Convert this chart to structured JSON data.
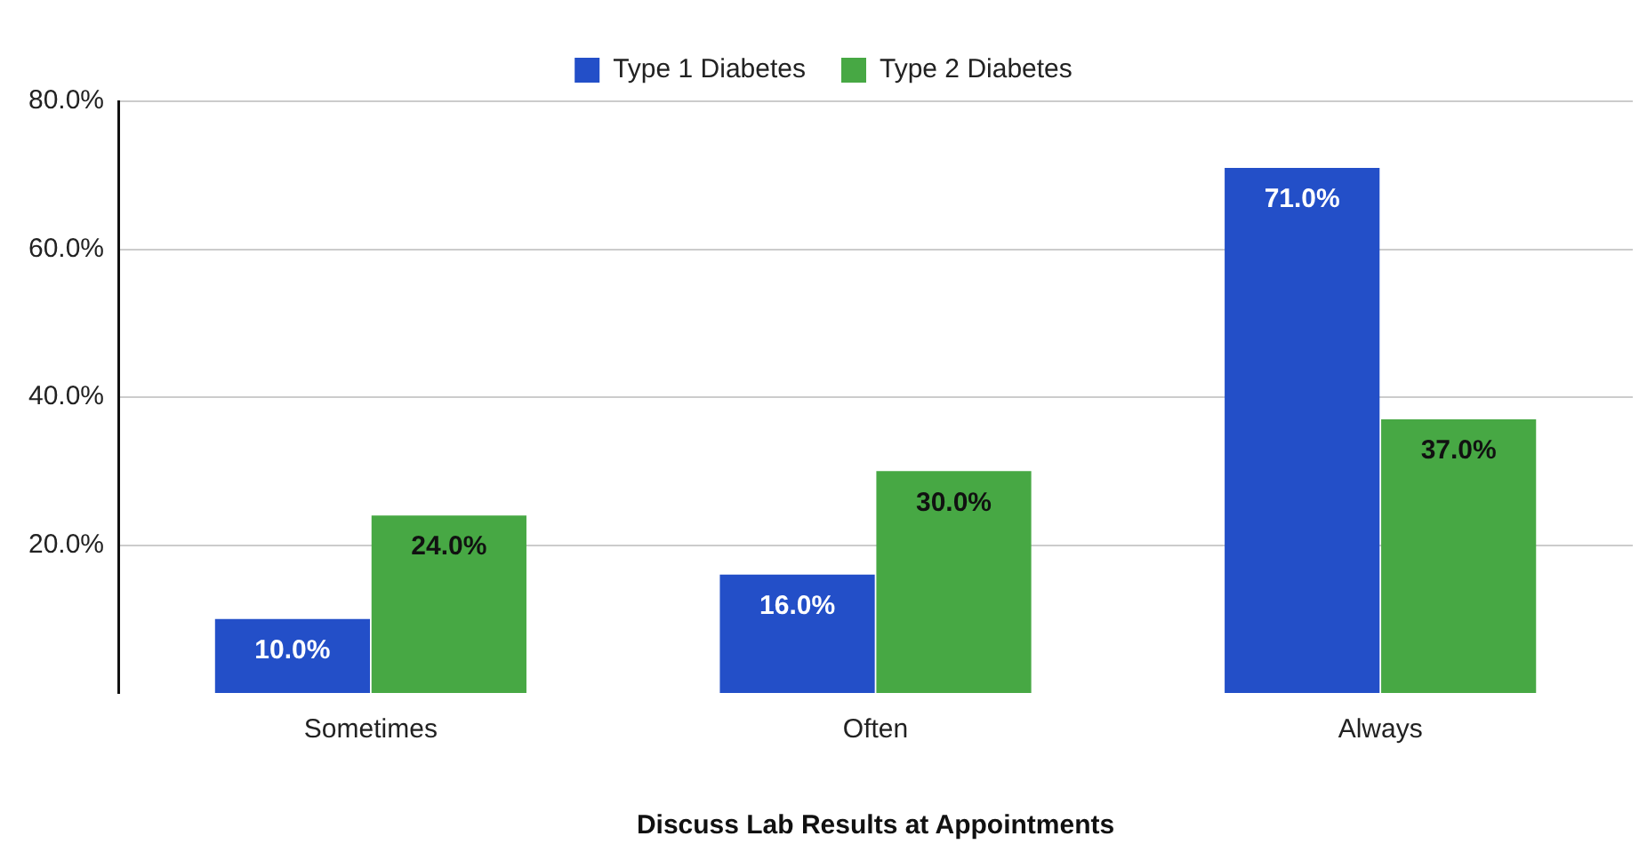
{
  "chart_data": {
    "type": "bar",
    "xlabel": "Discuss Lab Results at Appointments",
    "categories": [
      "Sometimes",
      "Often",
      "Always"
    ],
    "series": [
      {
        "name": "Type 1 Diabetes",
        "color": "#234fc8",
        "values": [
          10,
          16,
          71
        ],
        "value_labels": [
          "10.0%",
          "16.0%",
          "71.0%"
        ]
      },
      {
        "name": "Type 2 Diabetes",
        "color": "#47a844",
        "values": [
          24,
          30,
          37
        ],
        "value_labels": [
          "24.0%",
          "30.0%",
          "37.0%"
        ]
      }
    ],
    "ylim": [
      0,
      80
    ],
    "yticks": [
      {
        "value": 20,
        "label": "20.0%"
      },
      {
        "value": 40,
        "label": "40.0%"
      },
      {
        "value": 60,
        "label": "60.0%"
      },
      {
        "value": 80,
        "label": "80.0%"
      }
    ],
    "grid": "y",
    "legend": "top"
  }
}
